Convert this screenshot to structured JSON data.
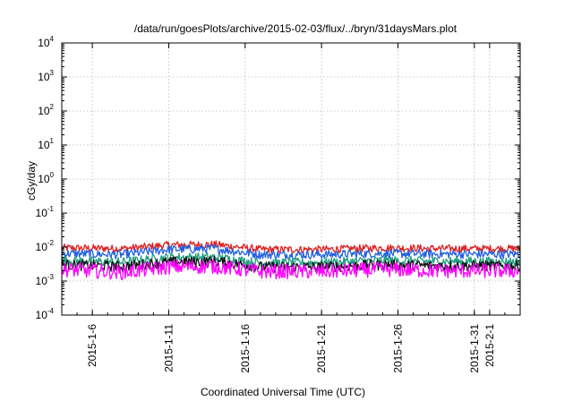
{
  "chart_data": {
    "type": "line",
    "title": "/data/run/goesPlots/archive/2015-02-03/flux/../bryn/31daysMars.plot",
    "xlabel": "Coordinated Universal Time (UTC)",
    "ylabel": "cGy/day",
    "yscale": "log",
    "ylim": [
      0.0001,
      10000
    ],
    "y_ticks": [
      {
        "base": "10",
        "exp": "-4",
        "value": 0.0001
      },
      {
        "base": "10",
        "exp": "-3",
        "value": 0.001
      },
      {
        "base": "10",
        "exp": "-2",
        "value": 0.01
      },
      {
        "base": "10",
        "exp": "-1",
        "value": 0.1
      },
      {
        "base": "10",
        "exp": "0",
        "value": 1
      },
      {
        "base": "10",
        "exp": "1",
        "value": 10
      },
      {
        "base": "10",
        "exp": "2",
        "value": 100
      },
      {
        "base": "10",
        "exp": "3",
        "value": 1000
      },
      {
        "base": "10",
        "exp": "4",
        "value": 10000
      }
    ],
    "xlim": [
      "2015-01-04",
      "2015-02-03"
    ],
    "x_ticks": [
      "2015-1-6",
      "2015-1-11",
      "2015-1-16",
      "2015-1-21",
      "2015-1-26",
      "2015-1-31",
      "2015-2-1"
    ],
    "grid": true,
    "series": [
      {
        "color": "#e02020",
        "level": 0.0095,
        "noise": 0.11,
        "x": [
          "2015-01-04",
          "2015-01-08",
          "2015-01-11",
          "2015-01-14",
          "2015-01-17",
          "2015-01-21",
          "2015-01-25",
          "2015-01-29",
          "2015-02-03"
        ],
        "y": [
          0.0095,
          0.009,
          0.0115,
          0.012,
          0.0085,
          0.0085,
          0.0095,
          0.009,
          0.009
        ]
      },
      {
        "color": "#2060e0",
        "level": 0.0065,
        "noise": 0.13,
        "x": [
          "2015-01-04",
          "2015-01-08",
          "2015-01-11",
          "2015-01-14",
          "2015-01-17",
          "2015-01-21",
          "2015-01-25",
          "2015-01-29",
          "2015-02-03"
        ],
        "y": [
          0.0065,
          0.006,
          0.0085,
          0.009,
          0.006,
          0.006,
          0.0065,
          0.0062,
          0.0062
        ]
      },
      {
        "color": "#20a080",
        "level": 0.004,
        "noise": 0.14,
        "x": [
          "2015-01-04",
          "2015-01-08",
          "2015-01-11",
          "2015-01-14",
          "2015-01-17",
          "2015-01-21",
          "2015-01-25",
          "2015-01-29",
          "2015-02-03"
        ],
        "y": [
          0.004,
          0.0036,
          0.005,
          0.005,
          0.0034,
          0.0035,
          0.004,
          0.0038,
          0.0037
        ]
      },
      {
        "color": "#111111",
        "level": 0.003,
        "noise": 0.16,
        "x": [
          "2015-01-04",
          "2015-01-08",
          "2015-01-11",
          "2015-01-14",
          "2015-01-17",
          "2015-01-21",
          "2015-01-25",
          "2015-01-29",
          "2015-02-03"
        ],
        "y": [
          0.003,
          0.0027,
          0.0036,
          0.0038,
          0.0026,
          0.0026,
          0.003,
          0.0028,
          0.0028
        ]
      },
      {
        "color": "#ff00ff",
        "level": 0.0022,
        "noise": 0.22,
        "x": [
          "2015-01-04",
          "2015-01-08",
          "2015-01-11",
          "2015-01-14",
          "2015-01-17",
          "2015-01-21",
          "2015-01-25",
          "2015-01-29",
          "2015-02-03"
        ],
        "y": [
          0.0022,
          0.0018,
          0.0026,
          0.0027,
          0.0019,
          0.0019,
          0.0022,
          0.002,
          0.002
        ]
      }
    ]
  }
}
